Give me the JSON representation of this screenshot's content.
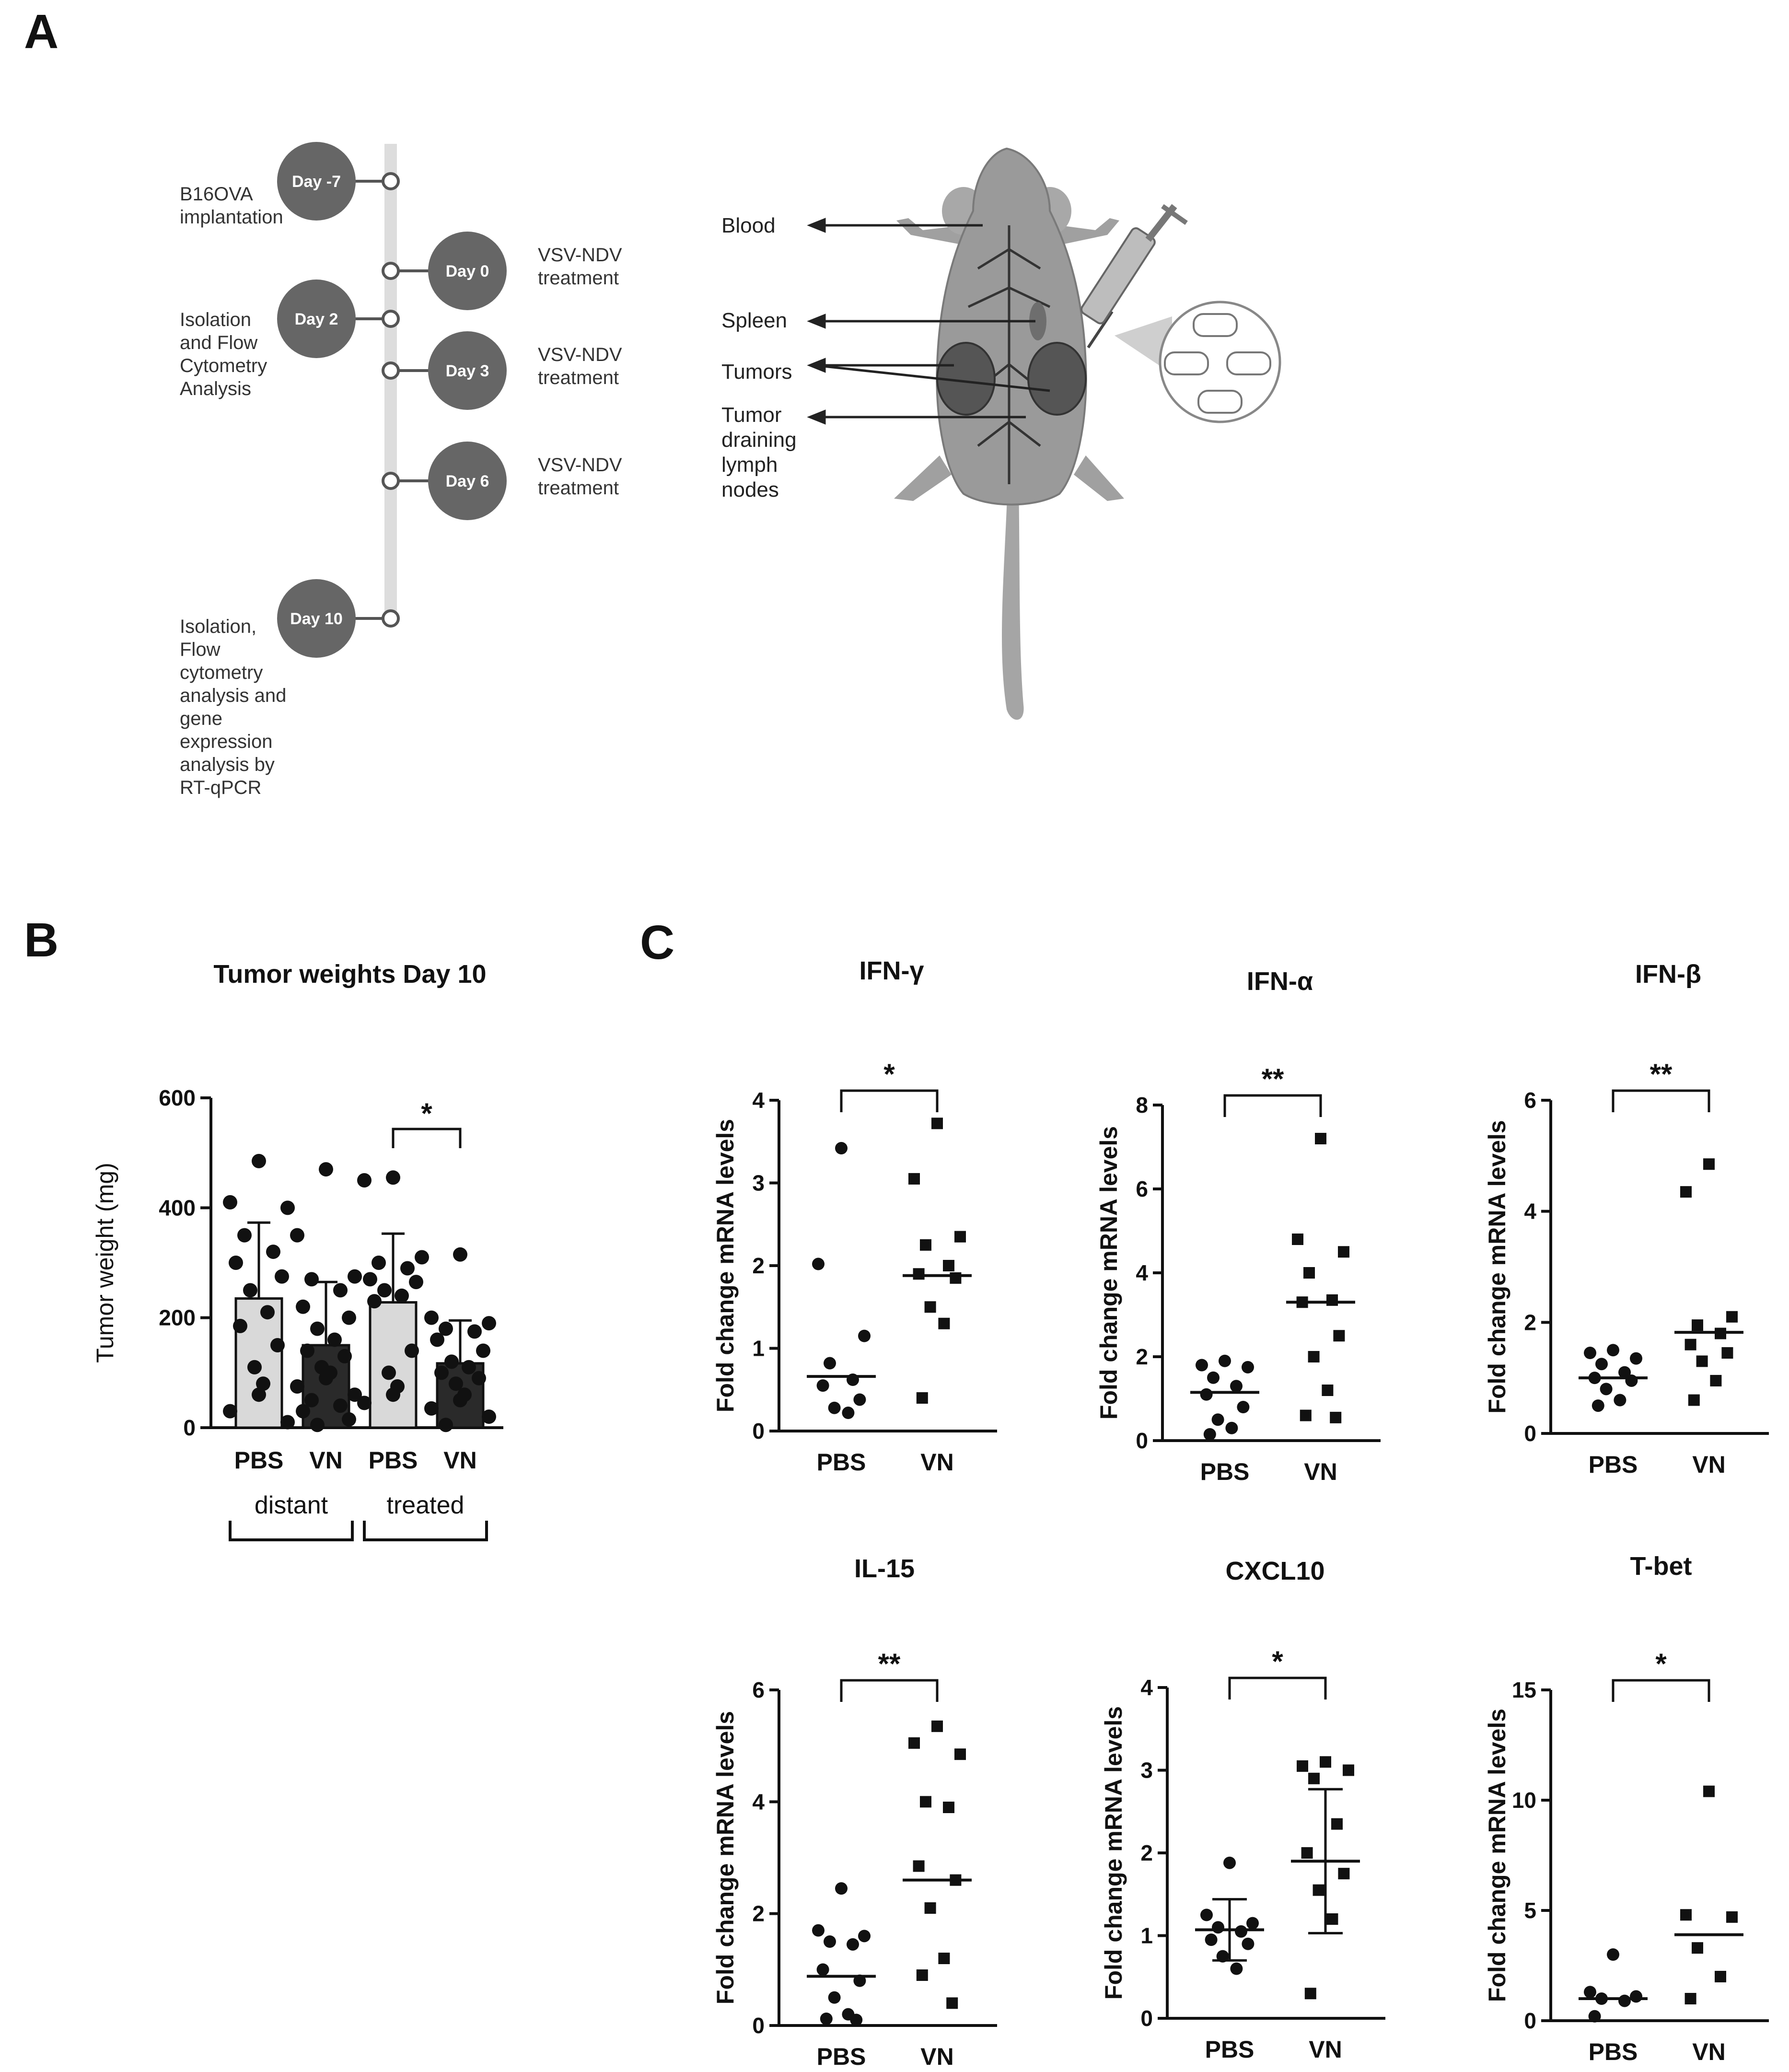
{
  "panels": {
    "A": "A",
    "B": "B",
    "C": "C"
  },
  "timeline": {
    "events": [
      {
        "day": "Day -7",
        "side": "left",
        "desc": [
          "B16OVA",
          "implantation"
        ]
      },
      {
        "day": "Day 0",
        "side": "right",
        "desc": [
          "VSV-NDV",
          "treatment"
        ]
      },
      {
        "day": "Day 2",
        "side": "left",
        "desc": [
          "Isolation",
          "and Flow",
          "Cytometry",
          "Analysis"
        ]
      },
      {
        "day": "Day 3",
        "side": "right",
        "desc": [
          "VSV-NDV",
          "treatment"
        ]
      },
      {
        "day": "Day 6",
        "side": "right",
        "desc": [
          "VSV-NDV",
          "treatment"
        ]
      },
      {
        "day": "Day 10",
        "side": "left",
        "desc": [
          "Isolation,",
          "Flow",
          "cytometry",
          "analysis and",
          "gene",
          "expression",
          "analysis by",
          "RT-qPCR"
        ]
      }
    ]
  },
  "mouse": {
    "labels": [
      [
        "Blood"
      ],
      [
        "Spleen"
      ],
      [
        "Tumors"
      ],
      [
        "Tumor",
        "draining",
        "lymph",
        "nodes"
      ]
    ]
  },
  "colors": {
    "dark_marker": "#111111",
    "light_bar": "#d9d9d9",
    "dark_bar": "#2a2a2a",
    "timeline_circle": "#666666",
    "mouse_body": "#9a9a9a"
  },
  "chart_data": [
    {
      "id": "B",
      "type": "bar",
      "title": "Tumor weights Day 10",
      "ylabel": "Tumor weight (mg)",
      "ylim": [
        0,
        600
      ],
      "yticks": [
        0,
        200,
        400,
        600
      ],
      "categories": [
        "PBS",
        "VN",
        "PBS",
        "VN"
      ],
      "groups": [
        {
          "label": "distant",
          "span": [
            0,
            1
          ]
        },
        {
          "label": "treated",
          "span": [
            2,
            3
          ]
        }
      ],
      "means": [
        235,
        150,
        228,
        117
      ],
      "sd": [
        138,
        115,
        125,
        78
      ],
      "points": [
        [
          485,
          410,
          400,
          350,
          320,
          300,
          275,
          250,
          210,
          185,
          150,
          110,
          80,
          60,
          30,
          10
        ],
        [
          470,
          350,
          275,
          270,
          250,
          220,
          200,
          180,
          160,
          140,
          130,
          110,
          100,
          90,
          75,
          60,
          50,
          40,
          30,
          15,
          5
        ],
        [
          455,
          450,
          310,
          300,
          290,
          270,
          265,
          250,
          240,
          230,
          140,
          100,
          75,
          60,
          45
        ],
        [
          315,
          200,
          190,
          180,
          175,
          160,
          140,
          120,
          110,
          100,
          90,
          80,
          60,
          50,
          35,
          20,
          5
        ]
      ],
      "significance": [
        {
          "between": [
            2,
            3
          ],
          "label": "*"
        }
      ]
    },
    {
      "id": "IFN-gamma",
      "type": "scatter",
      "title": "IFN-γ",
      "ylabel": "Fold change mRNA levels",
      "ylim": [
        0,
        4
      ],
      "yticks": [
        0,
        1,
        2,
        3,
        4
      ],
      "categories": [
        "PBS",
        "VN"
      ],
      "points": [
        [
          3.42,
          2.02,
          1.15,
          0.82,
          0.62,
          0.55,
          0.38,
          0.28,
          0.22
        ],
        [
          3.72,
          3.05,
          2.35,
          2.25,
          2.0,
          1.9,
          1.85,
          1.5,
          1.3,
          0.4
        ]
      ],
      "medians": [
        0.66,
        1.88
      ],
      "significance": [
        {
          "between": [
            0,
            1
          ],
          "label": "*"
        }
      ]
    },
    {
      "id": "IFN-alpha",
      "type": "scatter",
      "title": "IFN-α",
      "ylabel": "Fold change mRNA levels",
      "ylim": [
        0,
        8
      ],
      "yticks": [
        0,
        2,
        4,
        6,
        8
      ],
      "categories": [
        "PBS",
        "VN"
      ],
      "points": [
        [
          1.9,
          1.8,
          1.75,
          1.5,
          1.3,
          1.1,
          0.8,
          0.5,
          0.3,
          0.15
        ],
        [
          7.2,
          4.8,
          4.5,
          4.0,
          3.35,
          3.3,
          2.5,
          2.0,
          1.2,
          0.6,
          0.55
        ]
      ],
      "medians": [
        1.15,
        3.3
      ],
      "significance": [
        {
          "between": [
            0,
            1
          ],
          "label": "**"
        }
      ]
    },
    {
      "id": "IFN-beta",
      "type": "scatter",
      "title": "IFN-β",
      "ylabel": "Fold change mRNA levels",
      "ylim": [
        0,
        6
      ],
      "yticks": [
        0,
        2,
        4,
        6
      ],
      "categories": [
        "PBS",
        "VN"
      ],
      "points": [
        [
          1.5,
          1.45,
          1.35,
          1.25,
          1.1,
          1.0,
          0.95,
          0.8,
          0.6,
          0.5
        ],
        [
          4.85,
          4.35,
          2.1,
          1.95,
          1.8,
          1.6,
          1.45,
          1.3,
          0.95,
          0.6
        ]
      ],
      "medians": [
        1.0,
        1.82
      ],
      "significance": [
        {
          "between": [
            0,
            1
          ],
          "label": "**"
        }
      ]
    },
    {
      "id": "IL-15",
      "type": "scatter",
      "title": "IL-15",
      "ylabel": "Fold change mRNA levels",
      "ylim": [
        0,
        6
      ],
      "yticks": [
        0,
        2,
        4,
        6
      ],
      "categories": [
        "PBS",
        "VN"
      ],
      "points": [
        [
          2.45,
          1.7,
          1.6,
          1.5,
          1.45,
          1.0,
          0.8,
          0.5,
          0.2,
          0.12,
          0.1
        ],
        [
          5.35,
          5.05,
          4.85,
          4.0,
          3.9,
          2.85,
          2.6,
          2.1,
          1.2,
          0.9,
          0.4
        ]
      ],
      "medians": [
        0.88,
        2.6
      ],
      "significance": [
        {
          "between": [
            0,
            1
          ],
          "label": "**"
        }
      ]
    },
    {
      "id": "CXCL10",
      "type": "scatter",
      "title": "CXCL10",
      "ylabel": "Fold change mRNA levels",
      "ylim": [
        0,
        4
      ],
      "yticks": [
        0,
        1,
        2,
        3,
        4
      ],
      "categories": [
        "PBS",
        "VN"
      ],
      "points": [
        [
          1.88,
          1.25,
          1.15,
          1.1,
          1.05,
          0.95,
          0.9,
          0.75,
          0.6
        ],
        [
          3.1,
          3.05,
          3.0,
          2.9,
          2.35,
          2.0,
          1.75,
          1.55,
          1.2,
          0.3
        ]
      ],
      "means": [
        1.07,
        1.9
      ],
      "sd": [
        0.37,
        0.87
      ],
      "significance": [
        {
          "between": [
            0,
            1
          ],
          "label": "*"
        }
      ]
    },
    {
      "id": "T-bet",
      "type": "scatter",
      "title": "T-bet",
      "ylabel": "Fold change mRNA levels",
      "ylim": [
        0,
        15
      ],
      "yticks": [
        0,
        5,
        10,
        15
      ],
      "categories": [
        "PBS",
        "VN"
      ],
      "points": [
        [
          3.0,
          1.3,
          1.1,
          1.0,
          0.9,
          0.2
        ],
        [
          10.4,
          4.8,
          4.7,
          3.3,
          2.0,
          1.0
        ]
      ],
      "medians": [
        1.0,
        3.9
      ],
      "significance": [
        {
          "between": [
            0,
            1
          ],
          "label": "*"
        }
      ]
    }
  ]
}
